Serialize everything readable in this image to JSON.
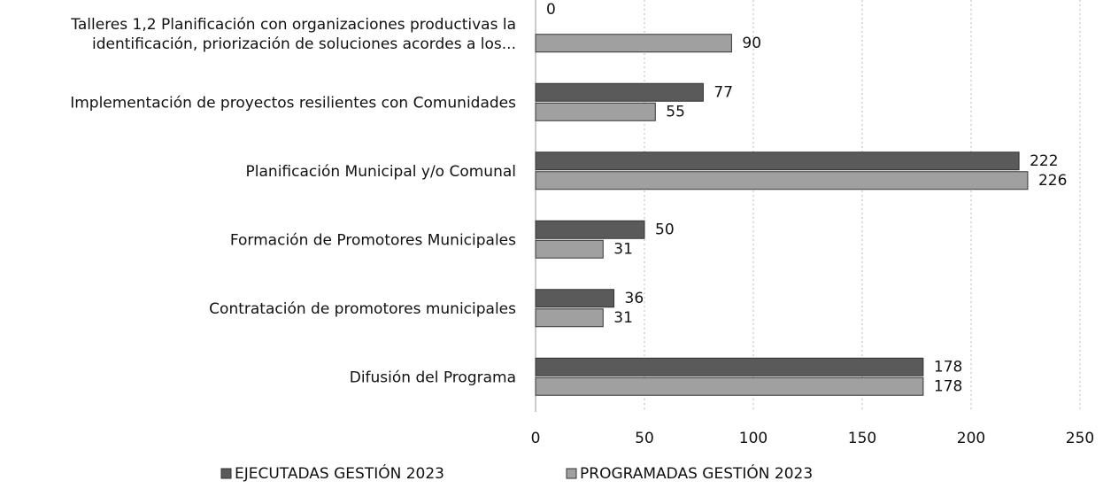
{
  "chart_data": {
    "type": "hbar",
    "categories": [
      "Talleres 1,2 Planificación con organizaciones productivas la\nidentificación, priorización de soluciones acordes a los...",
      "Implementación de proyectos resilientes con Comunidades",
      "Planificación Municipal y/o Comunal",
      "Formación de Promotores Municipales",
      "Contratación de promotores municipales",
      "Difusión del Programa"
    ],
    "series": [
      {
        "name": "EJECUTADAS GESTIÓN 2023",
        "color": "#5a5a5a",
        "values": [
          0,
          77,
          222,
          50,
          36,
          178
        ]
      },
      {
        "name": "PROGRAMADAS GESTIÓN 2023",
        "color": "#a0a0a0",
        "values": [
          90,
          55,
          226,
          31,
          31,
          178
        ]
      }
    ],
    "xlim": [
      0,
      250
    ],
    "xticks": [
      0,
      50,
      100,
      150,
      200,
      250
    ],
    "grid": true,
    "legend": "bottom"
  }
}
